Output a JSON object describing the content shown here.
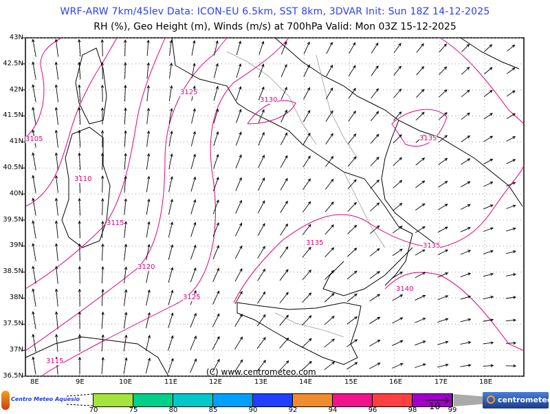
{
  "header": {
    "title": "WRF-ARW 7km/45lev  Data: ICON-EU 6.5km, SST 8km, 3DVAR  Init: Sun 18Z 14-12-2025",
    "subtitle": "RH (%), Geo Height (m), Winds (m/s) at 700hPa  Valid: Mon 03Z 15-12-2025"
  },
  "map": {
    "lat_labels": [
      "43N",
      "42.5N",
      "42N",
      "41.5N",
      "41N",
      "40.5N",
      "40N",
      "39.5N",
      "39N",
      "38.5N",
      "38N",
      "37.5N",
      "37N",
      "36.5N"
    ],
    "lon_labels": [
      "8E",
      "9E",
      "10E",
      "11E",
      "12E",
      "13E",
      "14E",
      "15E",
      "16E",
      "17E",
      "18E"
    ],
    "contour_labels": [
      "3105",
      "3110",
      "3115",
      "3120",
      "3125",
      "3125",
      "3130",
      "3135",
      "3135",
      "3135",
      "3140",
      "3115"
    ],
    "copyright": "(C) www.centrometeo.com",
    "colors": {
      "contour": "#e0007a",
      "coast": "#000000",
      "borders": "#999999",
      "grid": "#999999",
      "title": "#2b3cff"
    }
  },
  "legend": {
    "colors": [
      "#a4e43c",
      "#00d08c",
      "#00c8c8",
      "#00a0ff",
      "#2040ff",
      "#f08c30",
      "#f0148c",
      "#ff4040",
      "#a000c8"
    ],
    "labels": [
      "70",
      "75",
      "80",
      "85",
      "90",
      "92",
      "94",
      "96",
      "98",
      "99"
    ],
    "wind_ref_label": "10",
    "logo_left": "Centro Meteo Aquesio",
    "logo_right": "centrometeo"
  }
}
